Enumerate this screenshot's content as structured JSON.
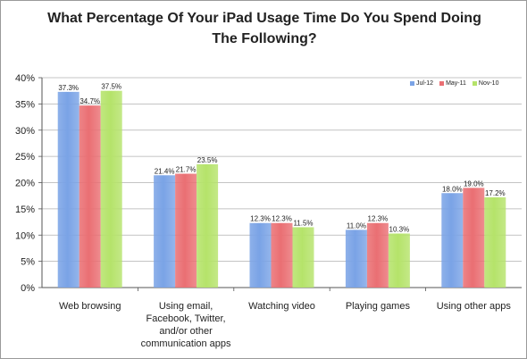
{
  "chart_data": {
    "type": "bar",
    "title": "What Percentage Of Your iPad Usage Time Do You Spend Doing The Following?",
    "categories": [
      [
        "Web browsing"
      ],
      [
        "Using email,",
        "Facebook, Twitter,",
        "and/or other",
        "communication apps"
      ],
      [
        "Watching video"
      ],
      [
        "Playing games"
      ],
      [
        "Using other apps"
      ]
    ],
    "series": [
      {
        "name": "Jul-12",
        "color": "#7aa3e6",
        "values": [
          37.3,
          21.4,
          12.3,
          11.0,
          18.0
        ]
      },
      {
        "name": "May-11",
        "color": "#ea6f73",
        "values": [
          34.7,
          21.7,
          12.3,
          12.3,
          19.0
        ]
      },
      {
        "name": "Nov-10",
        "color": "#b5e36a",
        "values": [
          37.5,
          23.5,
          11.5,
          10.3,
          17.2
        ]
      }
    ],
    "data_labels": [
      [
        "37.3%",
        "21.4%",
        "12.3%",
        "11.0%",
        "18.0%"
      ],
      [
        "34.7%",
        "21.7%",
        "12.3%",
        "12.3%",
        "19.0%"
      ],
      [
        "37.5%",
        "23.5%",
        "11.5%",
        "10.3%",
        "17.2%"
      ]
    ],
    "yticks": [
      "0%",
      "5%",
      "10%",
      "15%",
      "20%",
      "25%",
      "30%",
      "35%",
      "40%"
    ],
    "ylim": [
      0,
      40
    ],
    "grid": true,
    "legend_position": "top-right"
  }
}
